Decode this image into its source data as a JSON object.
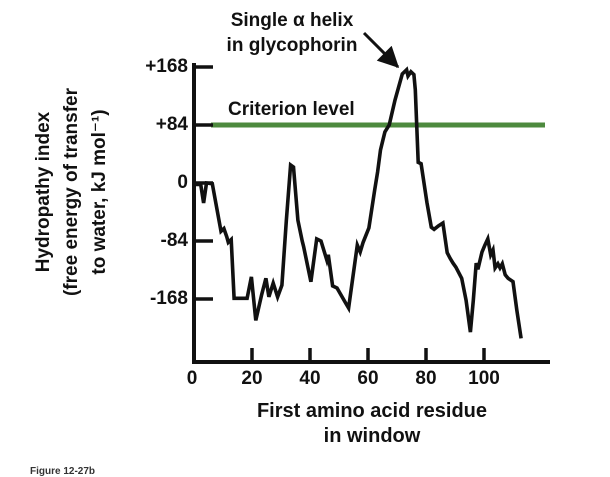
{
  "figure": {
    "annotation": {
      "line1": "Single α helix",
      "line2": "in glycophorin"
    },
    "criterion_label": "Criterion level",
    "y_axis": {
      "title_lines": [
        "Hydropathy index",
        "(free energy of transfer",
        "to water, kJ mol⁻¹)"
      ],
      "tick_labels": [
        "+168",
        "+84",
        "0",
        "-84",
        "-168"
      ]
    },
    "x_axis": {
      "title_lines": [
        "First amino acid residue",
        "in window"
      ],
      "tick_labels": [
        "0",
        "20",
        "40",
        "60",
        "80",
        "100"
      ]
    },
    "caption": "Figure 12-27b",
    "colors": {
      "criterion_line": "#4d8a3e",
      "curve": "#111111",
      "axis": "#111111"
    }
  },
  "chart_data": {
    "type": "line",
    "title": "",
    "xlabel": "First amino acid residue in window",
    "ylabel": "Hydropathy index (free energy of transfer to water, kJ mol⁻¹)",
    "x_ticks": [
      0,
      20,
      40,
      60,
      80,
      100
    ],
    "y_ticks": [
      168,
      84,
      0,
      -84,
      -168
    ],
    "xlim": [
      0,
      121
    ],
    "ylim": [
      -240,
      200
    ],
    "grid": false,
    "criterion_level": 84,
    "annotation_target": {
      "x": 74,
      "y": 164,
      "text": "Single α helix in glycophorin"
    },
    "series": [
      {
        "name": "hydropathy",
        "points": [
          [
            1,
            -2
          ],
          [
            3,
            -2
          ],
          [
            4,
            -29
          ],
          [
            5,
            0
          ],
          [
            7,
            -1
          ],
          [
            10,
            -70
          ],
          [
            11,
            -66
          ],
          [
            12,
            -78
          ],
          [
            12.5,
            -86
          ],
          [
            13.5,
            -82
          ],
          [
            14.5,
            -167
          ],
          [
            19,
            -167
          ],
          [
            20.5,
            -136
          ],
          [
            22,
            -199
          ],
          [
            24,
            -162
          ],
          [
            25.5,
            -138
          ],
          [
            26.5,
            -165
          ],
          [
            28,
            -145
          ],
          [
            29.5,
            -165
          ],
          [
            31,
            -148
          ],
          [
            32.5,
            -55
          ],
          [
            34,
            26
          ],
          [
            35,
            23
          ],
          [
            36.5,
            -54
          ],
          [
            38,
            -84
          ],
          [
            38.5,
            -92
          ],
          [
            41,
            -143
          ],
          [
            43,
            -81
          ],
          [
            44.5,
            -84
          ],
          [
            46.5,
            -112
          ],
          [
            47,
            -104
          ],
          [
            48.5,
            -149
          ],
          [
            50,
            -152
          ],
          [
            53,
            -174
          ],
          [
            54,
            -181
          ],
          [
            57,
            -90
          ],
          [
            58,
            -100
          ],
          [
            59,
            -86
          ],
          [
            61,
            -65
          ],
          [
            63,
            -10
          ],
          [
            64,
            16
          ],
          [
            65,
            48
          ],
          [
            66.5,
            74
          ],
          [
            68,
            84
          ],
          [
            70,
            120
          ],
          [
            72.5,
            158
          ],
          [
            74,
            164
          ],
          [
            74.5,
            155
          ],
          [
            75.5,
            161
          ],
          [
            76.5,
            157
          ],
          [
            77,
            135
          ],
          [
            78,
            30
          ],
          [
            79,
            28
          ],
          [
            81,
            -28
          ],
          [
            82.5,
            -64
          ],
          [
            83.5,
            -67
          ],
          [
            85,
            -62
          ],
          [
            86.5,
            -58
          ],
          [
            88,
            -101
          ],
          [
            89,
            -109
          ],
          [
            90,
            -116
          ],
          [
            91,
            -122
          ],
          [
            93,
            -138
          ],
          [
            94.5,
            -170
          ],
          [
            96,
            -216
          ],
          [
            97,
            -170
          ],
          [
            98,
            -116
          ],
          [
            98.6,
            -125
          ],
          [
            100,
            -100
          ],
          [
            101,
            -90
          ],
          [
            102,
            -81
          ],
          [
            103,
            -104
          ],
          [
            103.8,
            -97
          ],
          [
            104.5,
            -123
          ],
          [
            105.5,
            -117
          ],
          [
            106.2,
            -123
          ],
          [
            107,
            -117
          ],
          [
            108,
            -133
          ],
          [
            109,
            -138
          ],
          [
            110.7,
            -143
          ],
          [
            112,
            -184
          ],
          [
            113.5,
            -225
          ]
        ]
      }
    ]
  }
}
